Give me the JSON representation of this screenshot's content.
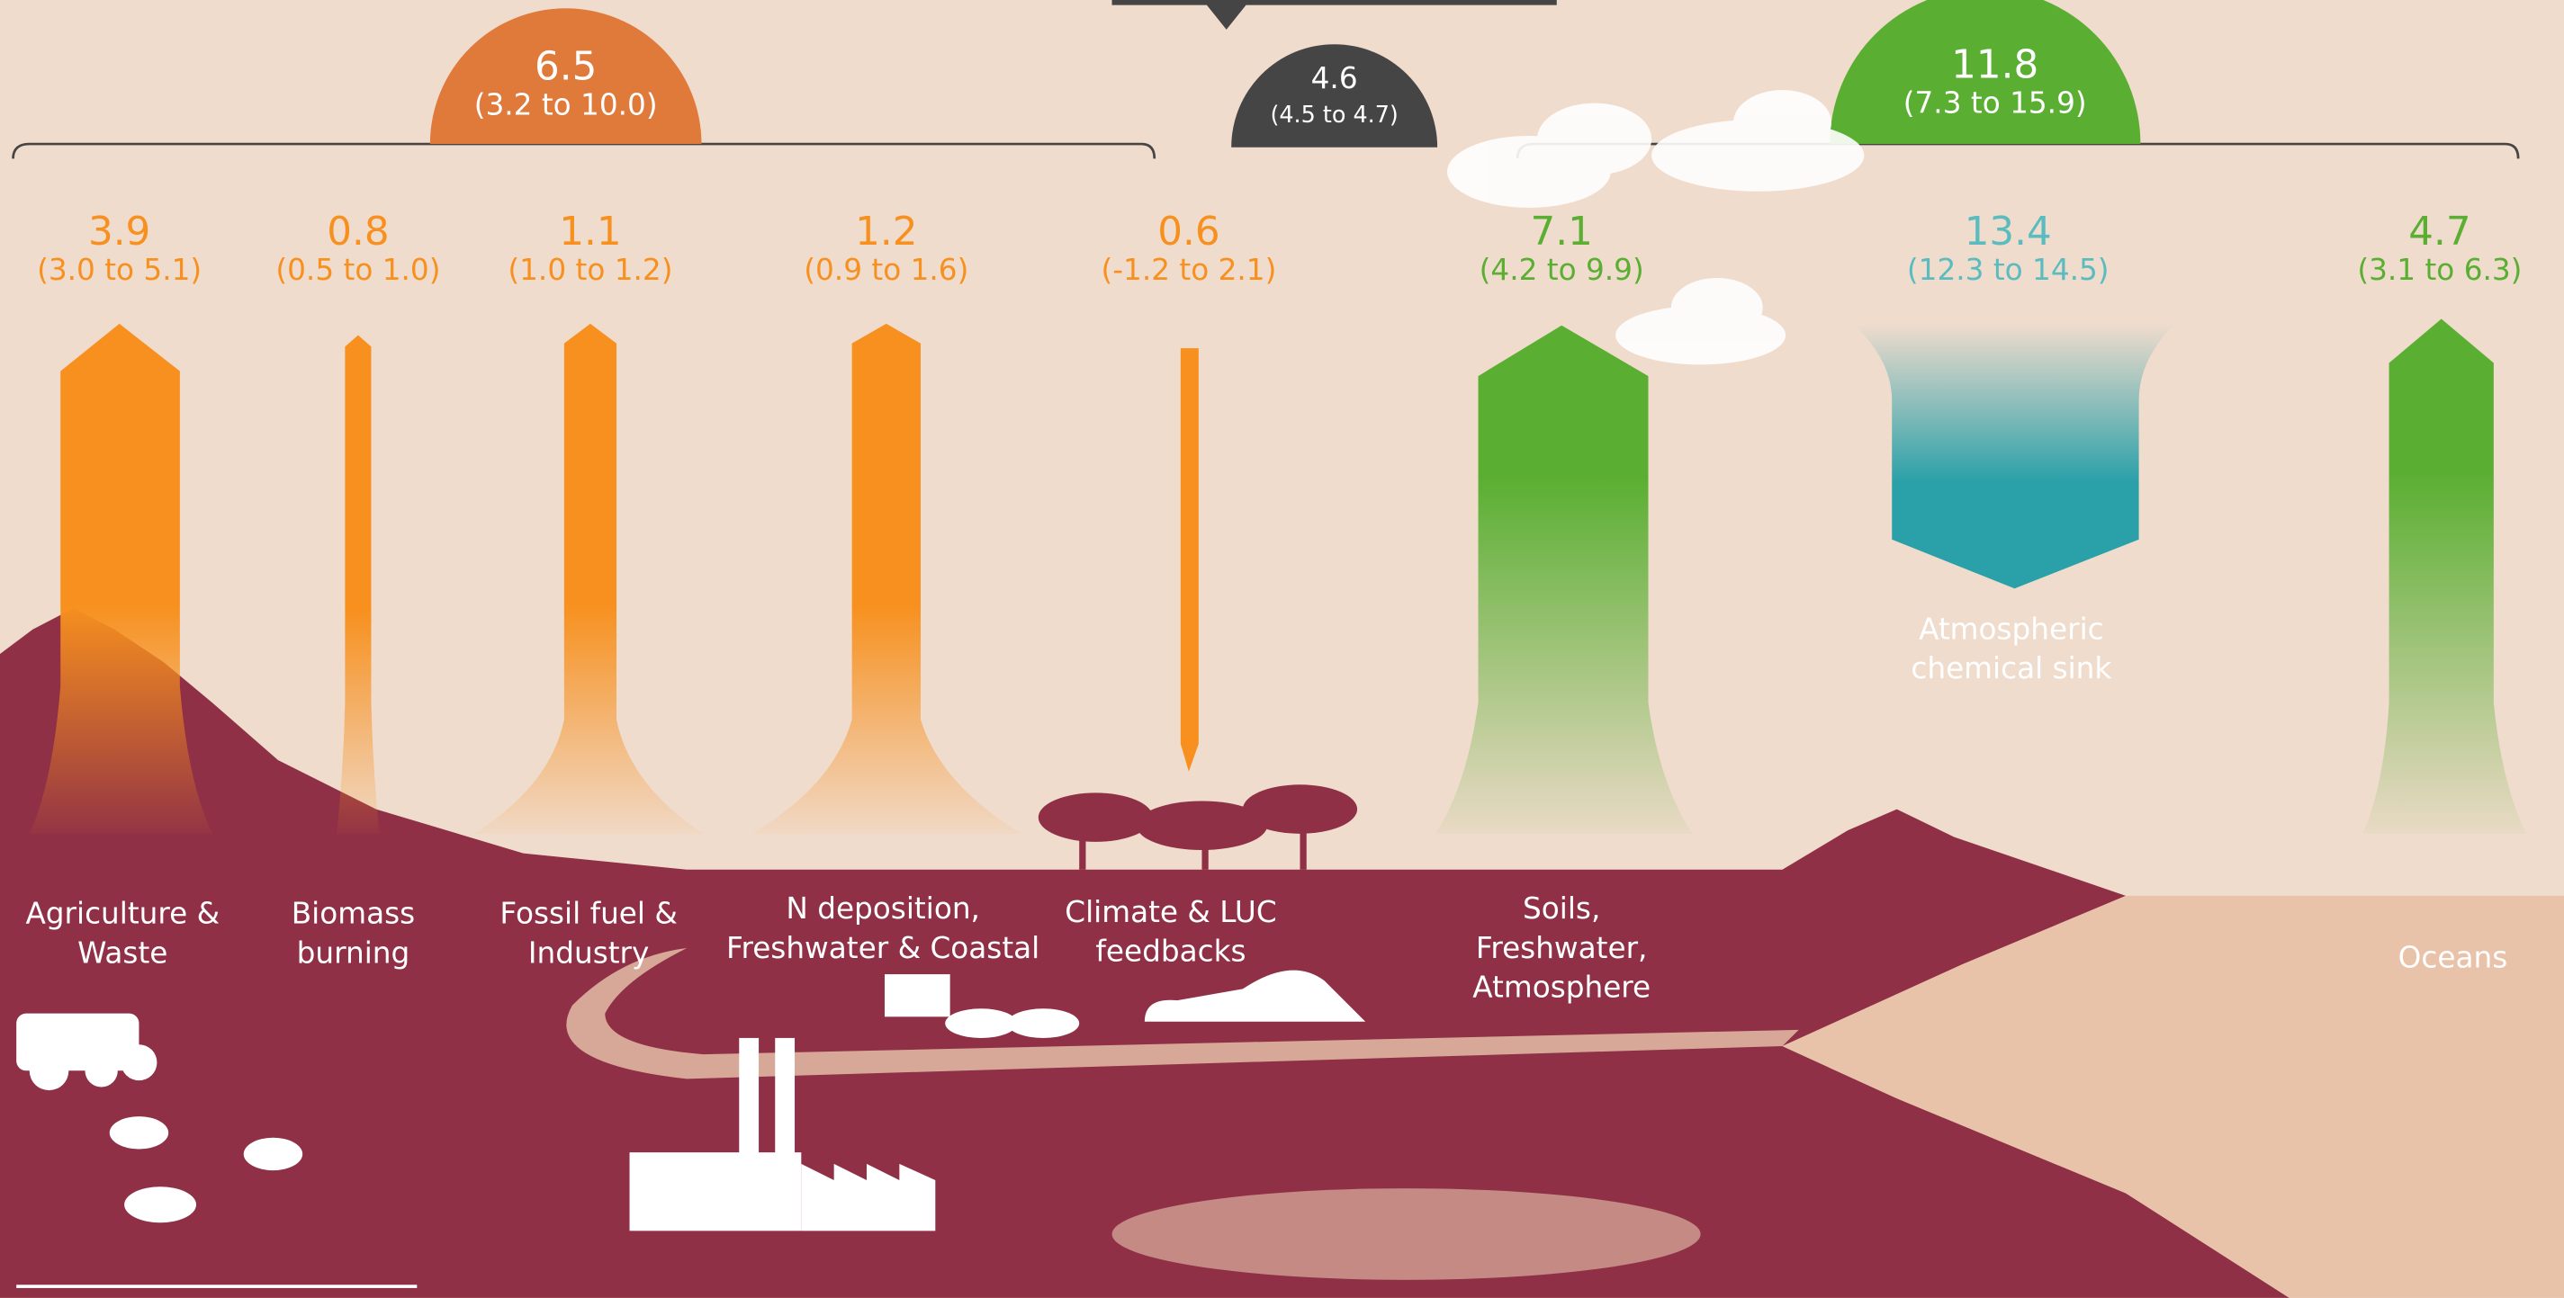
{
  "totals": {
    "sources": {
      "value": "6.5",
      "range": "(3.2 to 10.0)"
    },
    "net": {
      "value": "4.6",
      "range": "(4.5 to 4.7)"
    },
    "sinks": {
      "value": "11.8",
      "range": "(7.3 to 15.9)"
    }
  },
  "flows": [
    {
      "value": "3.9",
      "range": "(3.0 to 5.1)",
      "label": [
        "Agriculture &",
        "Waste"
      ]
    },
    {
      "value": "0.8",
      "range": "(0.5 to 1.0)",
      "label": [
        "Biomass",
        "burning"
      ]
    },
    {
      "value": "1.1",
      "range": "(1.0 to 1.2)",
      "label": [
        "Fossil fuel &",
        "Industry"
      ]
    },
    {
      "value": "1.2",
      "range": "(0.9 to 1.6)",
      "label": [
        "N deposition,",
        "Freshwater & Coastal"
      ]
    },
    {
      "value": "0.6",
      "range": "(-1.2 to 2.1)",
      "label": [
        "Climate & LUC",
        "feedbacks"
      ]
    },
    {
      "value": "7.1",
      "range": "(4.2 to 9.9)",
      "label": [
        "Soils,",
        "Freshwater,",
        "Atmosphere"
      ]
    },
    {
      "value": "13.4",
      "range": "(12.3 to 14.5)",
      "label": [
        "Atmospheric",
        "chemical sink"
      ]
    },
    {
      "value": "4.7",
      "range": "(3.1 to 6.3)",
      "label": [
        "Oceans"
      ]
    }
  ]
}
